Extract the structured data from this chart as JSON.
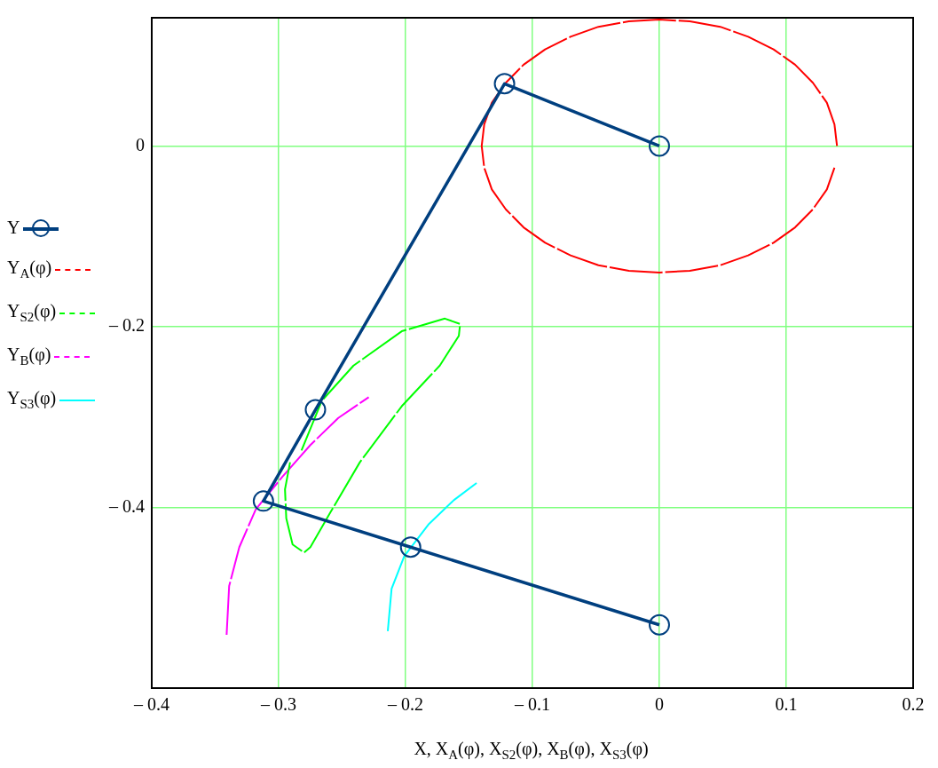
{
  "chart_data": {
    "type": "line",
    "xlabel": "X, X$_{A}$(φ), X$_{S2}$(φ), X$_{B}$(φ), X$_{S3}$(φ)",
    "xlim": [
      -0.4,
      0.2
    ],
    "xticks": [
      {
        "value": -0.4,
        "label": "– 0.4"
      },
      {
        "value": -0.3,
        "label": "– 0.3"
      },
      {
        "value": -0.2,
        "label": "– 0.2"
      },
      {
        "value": -0.1,
        "label": "– 0.1"
      },
      0,
      0.1,
      0.2
    ],
    "ylim": [
      -0.6,
      0.142
    ],
    "yticks": [
      {
        "value": -0.4,
        "label": "– 0.4"
      },
      {
        "value": -0.2,
        "label": "– 0.2"
      },
      0
    ],
    "grid": true,
    "legend": "left",
    "series": [
      {
        "name": "Y",
        "color": "#003f7f",
        "marker": "circle",
        "line_style": "solid",
        "x": [
          0,
          -0.122,
          -0.271,
          -0.312,
          -0.196,
          0
        ],
        "values": [
          0,
          0.069,
          -0.292,
          -0.393,
          -0.444,
          -0.53
        ]
      },
      {
        "name": "Y$_{A}$(φ)",
        "color": "#ff0000",
        "line_style": "dashed",
        "x": [
          0.14,
          0.138,
          0.132,
          0.121,
          0.107,
          0.09,
          0.07,
          0.048,
          0.024,
          0,
          -0.024,
          -0.048,
          -0.07,
          -0.09,
          -0.107,
          -0.121,
          -0.132,
          -0.138,
          -0.14,
          -0.138,
          -0.132,
          -0.121,
          -0.107,
          -0.09,
          -0.07,
          -0.048,
          -0.024,
          0,
          0.024,
          0.048,
          0.07,
          0.09,
          0.107,
          0.121,
          0.132,
          0.138
        ],
        "values": [
          0,
          0.024,
          0.048,
          0.07,
          0.09,
          0.107,
          0.121,
          0.132,
          0.138,
          0.14,
          0.138,
          0.132,
          0.121,
          0.107,
          0.09,
          0.07,
          0.048,
          0.024,
          0,
          -0.024,
          -0.048,
          -0.07,
          -0.09,
          -0.107,
          -0.121,
          -0.132,
          -0.138,
          -0.14,
          -0.138,
          -0.132,
          -0.121,
          -0.107,
          -0.09,
          -0.07,
          -0.048,
          -0.024
        ]
      },
      {
        "name": "Y$_{S2}$(φ)",
        "color": "#00ff00",
        "line_style": "dashed",
        "x": [
          -0.282,
          -0.266,
          -0.241,
          -0.203,
          -0.169,
          -0.157,
          -0.158,
          -0.173,
          -0.203,
          -0.236,
          -0.259,
          -0.275,
          -0.28,
          -0.289,
          -0.294,
          -0.295,
          -0.291
        ],
        "values": [
          -0.337,
          -0.282,
          -0.243,
          -0.205,
          -0.191,
          -0.197,
          -0.21,
          -0.243,
          -0.288,
          -0.35,
          -0.405,
          -0.444,
          -0.45,
          -0.441,
          -0.412,
          -0.38,
          -0.35
        ]
      },
      {
        "name": "Y$_{B}$(φ)",
        "color": "#ff00ff",
        "line_style": "dashed",
        "x": [
          -0.341,
          -0.339,
          -0.331,
          -0.318,
          -0.297,
          -0.275,
          -0.253,
          -0.229
        ],
        "values": [
          -0.541,
          -0.487,
          -0.444,
          -0.402,
          -0.366,
          -0.331,
          -0.301,
          -0.278
        ]
      },
      {
        "name": "Y$_{S3}$(φ)",
        "color": "#00ffff",
        "line_style": "solid",
        "x": [
          -0.214,
          -0.211,
          -0.201,
          -0.182,
          -0.162,
          -0.144
        ],
        "values": [
          -0.537,
          -0.49,
          -0.454,
          -0.419,
          -0.392,
          -0.373
        ]
      }
    ]
  }
}
